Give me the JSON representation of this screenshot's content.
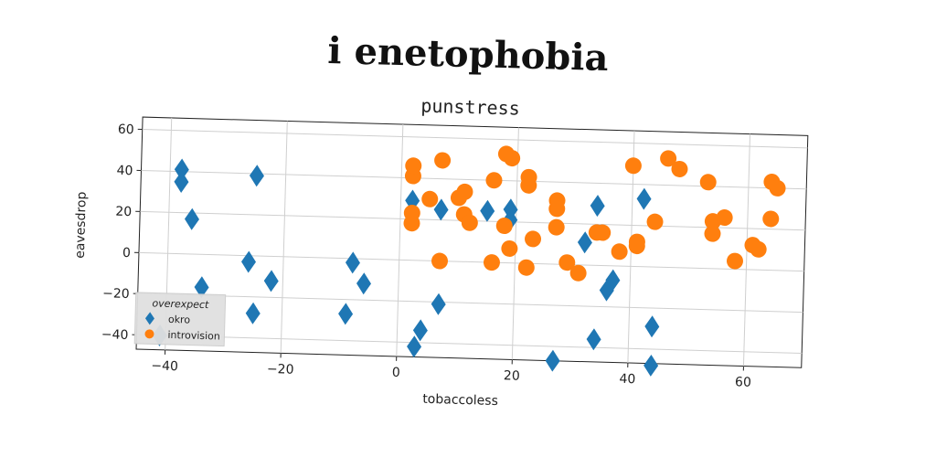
{
  "title": "i enetophobia",
  "chart_data": {
    "type": "scatter",
    "title": "punstress",
    "xlabel": "tobaccoless",
    "ylabel": "eavesdrop",
    "xlim": [
      -45,
      70
    ],
    "ylim": [
      -47,
      66
    ],
    "xticks": [
      -40,
      -20,
      0,
      20,
      40,
      60
    ],
    "yticks": [
      -40,
      -20,
      0,
      20,
      40,
      60
    ],
    "grid": true,
    "legend": {
      "title": "overexpect",
      "placement": "bottom-left"
    },
    "series": [
      {
        "name": "okro",
        "marker": "diamond",
        "color": "#1f77b4",
        "points": [
          [
            -38,
            41
          ],
          [
            -38,
            35
          ],
          [
            -36,
            17
          ],
          [
            -25,
            39
          ],
          [
            -34,
            -16
          ],
          [
            -26,
            -3
          ],
          [
            -22,
            -12
          ],
          [
            -25,
            -28
          ],
          [
            -41,
            -40
          ],
          [
            -8,
            -2
          ],
          [
            -6,
            -12
          ],
          [
            -9,
            -27
          ],
          [
            2,
            29
          ],
          [
            7,
            25
          ],
          [
            7,
            -21
          ],
          [
            4,
            -34
          ],
          [
            3,
            -42
          ],
          [
            15,
            25
          ],
          [
            19,
            26
          ],
          [
            19,
            21
          ],
          [
            27,
            -47
          ],
          [
            32,
            11
          ],
          [
            34,
            29
          ],
          [
            34,
            -36
          ],
          [
            36,
            -12
          ],
          [
            37,
            -7
          ],
          [
            42,
            33
          ],
          [
            44,
            -29
          ],
          [
            44,
            -48
          ]
        ]
      },
      {
        "name": "introvision",
        "marker": "circle",
        "color": "#ff7f0e",
        "points": [
          [
            2,
            41
          ],
          [
            2,
            46
          ],
          [
            2,
            23
          ],
          [
            2,
            18
          ],
          [
            5,
            30
          ],
          [
            7,
            49
          ],
          [
            7,
            0
          ],
          [
            10,
            31
          ],
          [
            11,
            34
          ],
          [
            11,
            23
          ],
          [
            12,
            19
          ],
          [
            16,
            0
          ],
          [
            16,
            40
          ],
          [
            18,
            53
          ],
          [
            19,
            51
          ],
          [
            18,
            18
          ],
          [
            19,
            7
          ],
          [
            22,
            38
          ],
          [
            22,
            42
          ],
          [
            22,
            -2
          ],
          [
            23,
            12
          ],
          [
            27,
            31
          ],
          [
            27,
            27
          ],
          [
            27,
            18
          ],
          [
            29,
            1
          ],
          [
            31,
            -4
          ],
          [
            34,
            16
          ],
          [
            35,
            16
          ],
          [
            38,
            7
          ],
          [
            40,
            49
          ],
          [
            41,
            12
          ],
          [
            41,
            10
          ],
          [
            44,
            22
          ],
          [
            46,
            53
          ],
          [
            48,
            48
          ],
          [
            53,
            42
          ],
          [
            54,
            23
          ],
          [
            54,
            17
          ],
          [
            56,
            25
          ],
          [
            58,
            4
          ],
          [
            61,
            12
          ],
          [
            62,
            10
          ],
          [
            64,
            43
          ],
          [
            65,
            40
          ],
          [
            64,
            25
          ]
        ]
      }
    ]
  }
}
